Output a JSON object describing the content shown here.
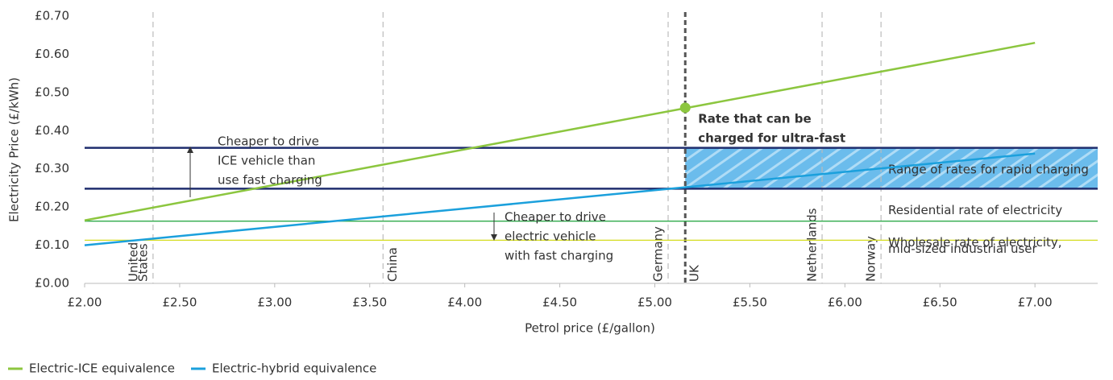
{
  "chart_data": {
    "type": "line",
    "x_label": "Petrol price (£/gallon)",
    "y_label": "Electricity Price (£/kWh)",
    "x": [
      2.0,
      7.0
    ],
    "series": [
      {
        "name": "Electric-ICE equivalence",
        "color": "#8cc63f",
        "values": [
          0.165,
          0.63
        ]
      },
      {
        "name": "Electric-hybrid equivalence",
        "color": "#1ba0dc",
        "values": [
          0.1,
          0.34
        ]
      }
    ],
    "xlim": [
      2.0,
      7.33
    ],
    "ylim": [
      0,
      0.7
    ],
    "xticks": [
      {
        "value": 2.0,
        "label": "£2.00"
      },
      {
        "value": 2.5,
        "label": "£2.50"
      },
      {
        "value": 3.0,
        "label": "£3.00"
      },
      {
        "value": 3.5,
        "label": "£3.50"
      },
      {
        "value": 4.0,
        "label": "£4.00"
      },
      {
        "value": 4.5,
        "label": "£4.50"
      },
      {
        "value": 5.0,
        "label": "£5.00"
      },
      {
        "value": 5.5,
        "label": "£5.50"
      },
      {
        "value": 6.0,
        "label": "£6.00"
      },
      {
        "value": 6.5,
        "label": "£6.50"
      },
      {
        "value": 7.0,
        "label": "£7.00"
      }
    ],
    "yticks": [
      {
        "value": 0,
        "label": "£0.00"
      },
      {
        "value": 0.1,
        "label": "£0.10"
      },
      {
        "value": 0.2,
        "label": "£0.20"
      },
      {
        "value": 0.3,
        "label": "£0.30"
      },
      {
        "value": 0.4,
        "label": "£0.40"
      },
      {
        "value": 0.5,
        "label": "£0.50"
      },
      {
        "value": 0.6,
        "label": "£0.60"
      },
      {
        "value": 0.7,
        "label": "£0.70"
      }
    ],
    "vlines": [
      {
        "label": [
          "United",
          "States"
        ],
        "value": 2.36,
        "color": "#bbbbbb"
      },
      {
        "label": [
          "China"
        ],
        "value": 3.57,
        "color": "#bbbbbb"
      },
      {
        "label": [
          "Germany"
        ],
        "value": 5.07,
        "color": "#bbbbbb"
      },
      {
        "label": [
          "UK"
        ],
        "value": 5.16,
        "color": "#555555"
      },
      {
        "label": [
          "Netherlands"
        ],
        "value": 5.88,
        "color": "#bbbbbb"
      },
      {
        "label": [
          "Norway"
        ],
        "value": 6.19,
        "color": "#bbbbbb"
      }
    ],
    "hlines": [
      {
        "value": 0.355,
        "color": "#1f2d6e"
      },
      {
        "value": 0.248,
        "color": "#1f2d6e"
      },
      {
        "value": 0.163,
        "color": "#2eaa4a",
        "label": [
          "Residential rate of electricity"
        ]
      },
      {
        "value": 0.113,
        "color": "#d4dc1e",
        "label": [
          "Wholesale rate of electricity,",
          "mid-sized industrial user"
        ]
      }
    ],
    "band": {
      "x0": 5.16,
      "from": 0.248,
      "to": 0.355,
      "color": "#3aa8e4",
      "label": [
        "Range of rates for rapid charging"
      ]
    },
    "point": {
      "x": 5.16,
      "y": 0.46,
      "color": "#8cc63f",
      "label": [
        "Rate that can be",
        "charged for ultra-fast"
      ]
    },
    "annotations": [
      {
        "text": [
          "Cheaper to drive",
          "ICE vehicle than",
          "use fast charging"
        ]
      },
      {
        "text": [
          "Cheaper to drive",
          "electric vehicle",
          "with fast charging"
        ]
      }
    ]
  }
}
